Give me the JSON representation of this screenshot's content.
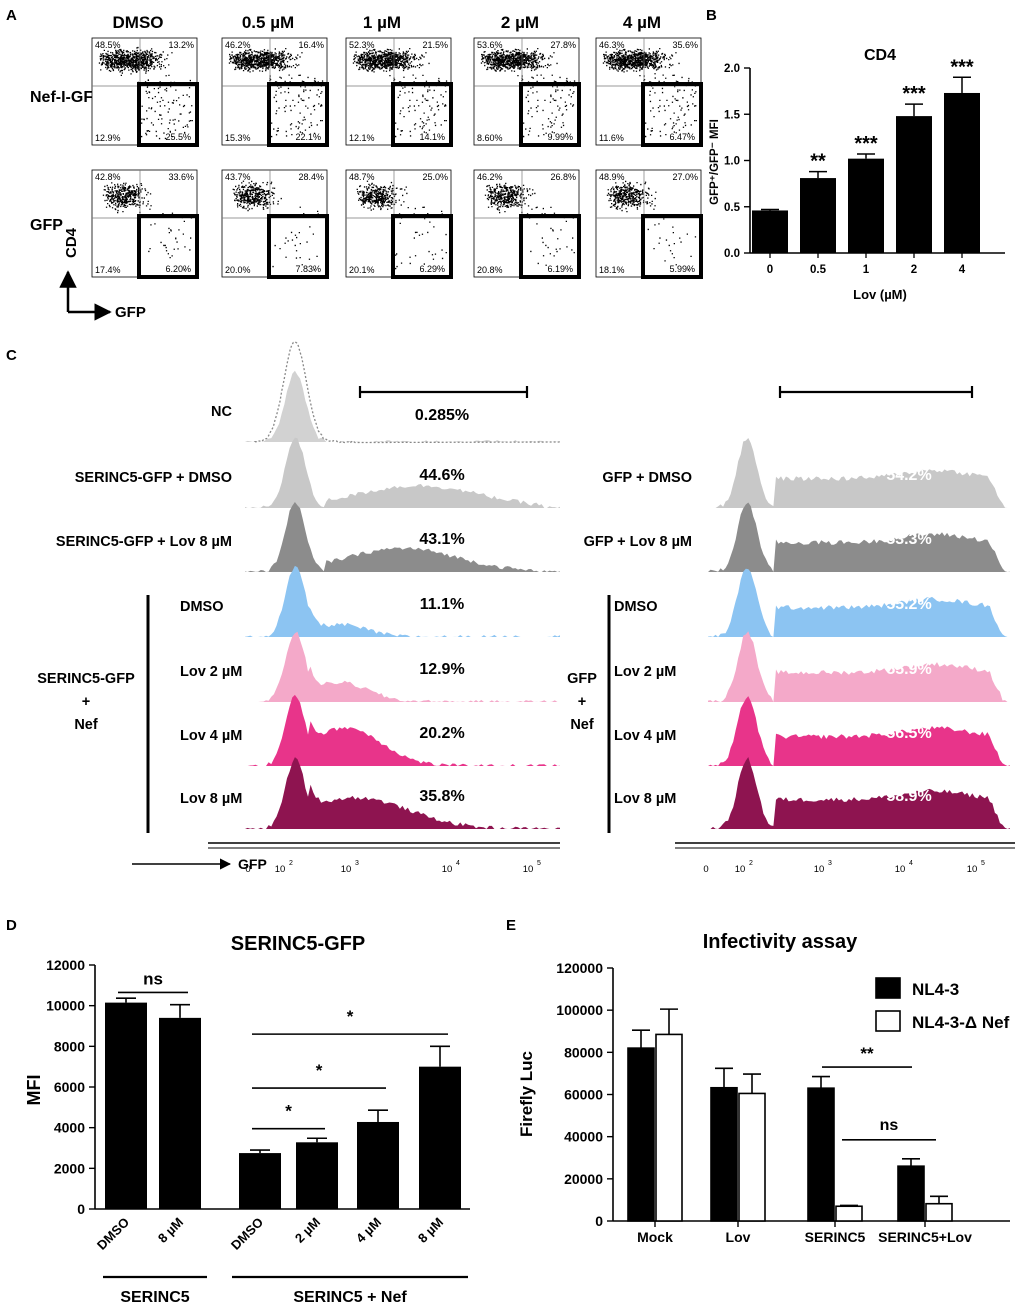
{
  "panels": {
    "A": "A",
    "B": "B",
    "C": "C",
    "D": "D",
    "E": "E"
  },
  "panel_a": {
    "columns": [
      "DMSO",
      "0.5 µM",
      "1 µM",
      "2 µM",
      "4 µM"
    ],
    "rows": [
      "Nef-I-GFP",
      "GFP"
    ],
    "y_axis_label": "CD4",
    "x_axis_label": "GFP",
    "quadrants": [
      [
        [
          "48.5%",
          "13.2%",
          "12.9%",
          "25.5%"
        ],
        [
          "46.2%",
          "16.4%",
          "15.3%",
          "22.1%"
        ],
        [
          "52.3%",
          "21.5%",
          "12.1%",
          "14.1%"
        ],
        [
          "53.6%",
          "27.8%",
          "8.60%",
          "9.99%"
        ],
        [
          "46.3%",
          "35.6%",
          "11.6%",
          "6.47%"
        ]
      ],
      [
        [
          "42.8%",
          "33.6%",
          "17.4%",
          "6.20%"
        ],
        [
          "43.7%",
          "28.4%",
          "20.0%",
          "7.83%"
        ],
        [
          "48.7%",
          "25.0%",
          "20.1%",
          "6.29%"
        ],
        [
          "46.2%",
          "26.8%",
          "20.8%",
          "6.19%"
        ],
        [
          "48.9%",
          "27.0%",
          "18.1%",
          "5.99%"
        ]
      ]
    ]
  },
  "panel_c": {
    "left_labels": [
      "NC",
      "SERINC5-GFP + DMSO",
      "SERINC5-GFP + Lov 8 µM",
      "DMSO",
      "Lov 2 µM",
      "Lov 4 µM",
      "Lov 8 µM"
    ],
    "left_values": [
      "0.285%",
      "44.6%",
      "43.1%",
      "11.1%",
      "12.9%",
      "20.2%",
      "35.8%"
    ],
    "left_group": [
      "SERINC5-GFP",
      "+",
      "Nef"
    ],
    "right_labels": [
      "GFP + DMSO",
      "GFP + Lov 8 µM",
      "DMSO",
      "Lov 2 µM",
      "Lov 4 µM",
      "Lov 8 µM"
    ],
    "right_values": [
      "54.2%",
      "53.3%",
      "55.2%",
      "55.9%",
      "56.5%",
      "58.9%"
    ],
    "right_group": [
      "GFP",
      "+",
      "Nef"
    ],
    "x_axis_label": "GFP",
    "x_ticks": [
      "0",
      "10",
      "10",
      "10",
      "10"
    ],
    "x_tick_exps": [
      "",
      "2",
      "3",
      "4",
      "5"
    ],
    "colors": [
      "#cfcfcf",
      "#c8c8c8",
      "#8c8c8c",
      "#8cc4f2",
      "#f4a9c9",
      "#e8348a",
      "#8e1450"
    ]
  },
  "chart_data": [
    {
      "panel": "B",
      "type": "bar",
      "title": "CD4",
      "categories": [
        "0",
        "0.5",
        "1",
        "2",
        "4"
      ],
      "values": [
        0.46,
        0.81,
        1.02,
        1.48,
        1.73
      ],
      "errors": [
        0.01,
        0.07,
        0.05,
        0.13,
        0.17
      ],
      "significance": [
        "",
        "**",
        "***",
        "***",
        "***"
      ],
      "xlabel": "Lov (µM)",
      "ylabel": "GFP⁺/GFP⁻ MFI",
      "ylim": [
        0,
        2.0
      ],
      "yticks": [
        "0.0",
        "0.5",
        "1.0",
        "1.5",
        "2.0"
      ]
    },
    {
      "panel": "D",
      "type": "bar",
      "title": "SERINC5-GFP",
      "categories": [
        "DMSO",
        "8 µM",
        "DMSO",
        "2 µM",
        "4 µM",
        "8 µM"
      ],
      "values": [
        10150,
        9400,
        2750,
        3280,
        4280,
        7000
      ],
      "errors": [
        220,
        650,
        150,
        200,
        580,
        1000
      ],
      "groups": [
        "SERINC5",
        "SERINC5 + Nef"
      ],
      "comparisons": [
        "ns",
        "*",
        "*",
        "*"
      ],
      "ylabel": "MFI",
      "ylim": [
        0,
        12000
      ],
      "yticks": [
        "0",
        "2000",
        "4000",
        "6000",
        "8000",
        "10000",
        "12000"
      ]
    },
    {
      "panel": "E",
      "type": "bar",
      "title": "Infectivity assay",
      "categories": [
        "Mock",
        "Lov",
        "SERINC5",
        "SERINC5+Lov"
      ],
      "series": [
        {
          "name": "NL4-3",
          "values": [
            82000,
            63200,
            63000,
            26000
          ],
          "errors": [
            8500,
            9200,
            5500,
            3500
          ]
        },
        {
          "name": "NL4-3-Δ Nef",
          "values": [
            88500,
            60500,
            7000,
            8200
          ],
          "errors": [
            12000,
            9200,
            400,
            3500
          ]
        }
      ],
      "comparisons": [
        "**",
        "ns"
      ],
      "ylabel": "Firefly Luc",
      "ylim": [
        0,
        120000
      ],
      "yticks": [
        "0",
        "20000",
        "40000",
        "60000",
        "80000",
        "100000",
        "120000"
      ]
    }
  ]
}
